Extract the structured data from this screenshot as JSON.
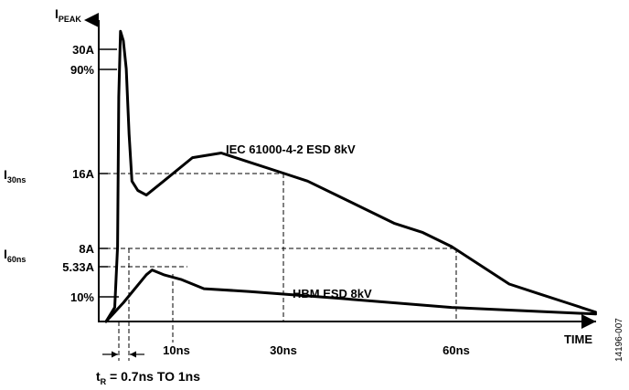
{
  "chart_data": {
    "type": "line",
    "y_axis_title": {
      "main": "I",
      "subscript": "PEAK"
    },
    "x_axis_title": "TIME",
    "y_tick_labels": [
      "30A",
      "90%",
      "16A",
      "8A",
      "5.33A",
      "10%"
    ],
    "y_side_labels": [
      {
        "main": "I",
        "subscript": "30ns"
      },
      {
        "main": "I",
        "subscript": "60ns"
      }
    ],
    "x_tick_labels": [
      "10ns",
      "30ns",
      "60ns"
    ],
    "series": [
      {
        "name": "IEC 61000-4-2 ESD 8kV",
        "x_ns": [
          0,
          1.5,
          2.0,
          2.2,
          2.5,
          3.0,
          3.5,
          4.0,
          4.5,
          5.5,
          7,
          10,
          15,
          20,
          25,
          30,
          35,
          40,
          45,
          50,
          55,
          60,
          65,
          70,
          75,
          80,
          85
        ],
        "y_A": [
          0,
          1.5,
          8,
          24,
          31,
          30,
          27,
          20,
          15,
          14,
          13.5,
          15,
          17.5,
          18,
          17,
          16,
          15,
          13.5,
          12,
          10.5,
          9.5,
          8,
          6,
          4,
          3,
          2,
          1
        ]
      },
      {
        "name": "HBM ESD 8kV",
        "x_ns": [
          0,
          3,
          7,
          8,
          10,
          13,
          17,
          25,
          40,
          60,
          85
        ],
        "y_A": [
          0,
          2,
          5,
          5.5,
          5.0,
          4.5,
          3.5,
          3.2,
          2.5,
          1.5,
          0.8
        ]
      }
    ],
    "annotations": [
      {
        "label": "t",
        "subscript": "R",
        "text": " = 0.7ns TO 1ns"
      }
    ]
  },
  "figure_id": "14196-007"
}
